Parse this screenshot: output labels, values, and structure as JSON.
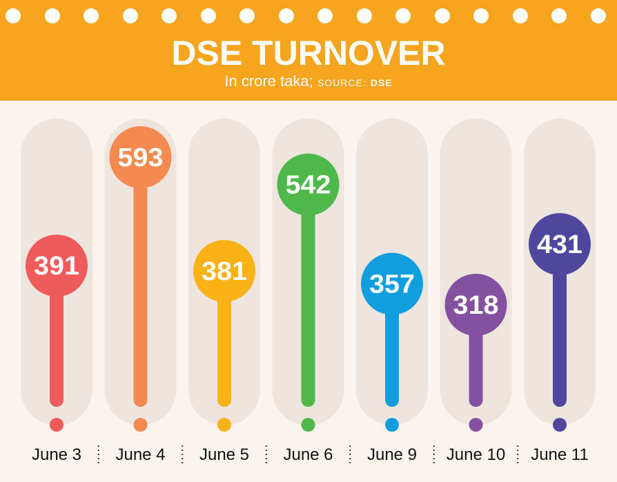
{
  "header": {
    "title": "DSE TURNOVER",
    "subtitle_units": "In crore taka;",
    "source_label": "SOURCE:",
    "source_name": "DSE"
  },
  "colors": {
    "header_bg": "#f7a51f",
    "page_bg": "#fbf3ee",
    "track": "#efe5df",
    "separator": "#333333"
  },
  "chart_data": {
    "type": "bar",
    "title": "DSE TURNOVER",
    "categories": [
      "June 3",
      "June 4",
      "June 5",
      "June 6",
      "June 9",
      "June 10",
      "June 11"
    ],
    "values": [
      391,
      593,
      381,
      542,
      357,
      318,
      431
    ],
    "value_labels": [
      "391",
      "593",
      "381",
      "542",
      "357",
      "318",
      "431"
    ],
    "colors": [
      "#ef5a5a",
      "#f58a50",
      "#fbb216",
      "#4fb84a",
      "#119edf",
      "#8450a0",
      "#4f479d"
    ],
    "units": "crore taka"
  }
}
